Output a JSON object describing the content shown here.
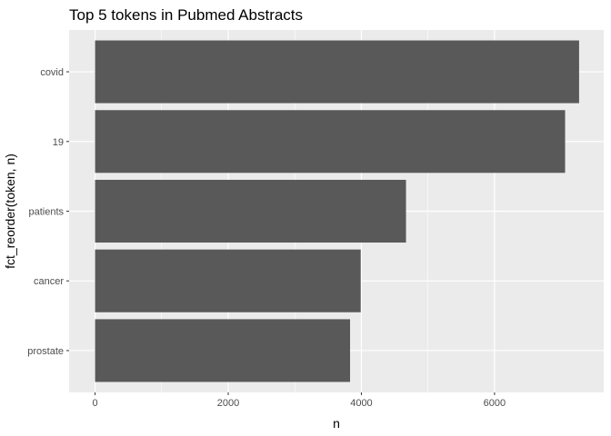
{
  "chart_data": {
    "type": "bar",
    "orientation": "horizontal",
    "title": "Top 5 tokens in Pubmed Abstracts",
    "xlabel": "n",
    "ylabel": "fct_reorder(token, n)",
    "categories": [
      "covid",
      "19",
      "patients",
      "cancer",
      "prostate"
    ],
    "values": [
      7270,
      7060,
      4670,
      3990,
      3830
    ],
    "xlim": [
      -390,
      7640
    ],
    "xticks": [
      0,
      2000,
      4000,
      6000
    ],
    "xtick_labels": [
      "0",
      "2000",
      "4000",
      "6000"
    ],
    "grid": true,
    "legend": "none",
    "colors": {
      "panel": "#ebebeb",
      "bar": "#595959",
      "grid_major": "#ffffff",
      "tick_text": "#4d4d4d"
    }
  }
}
